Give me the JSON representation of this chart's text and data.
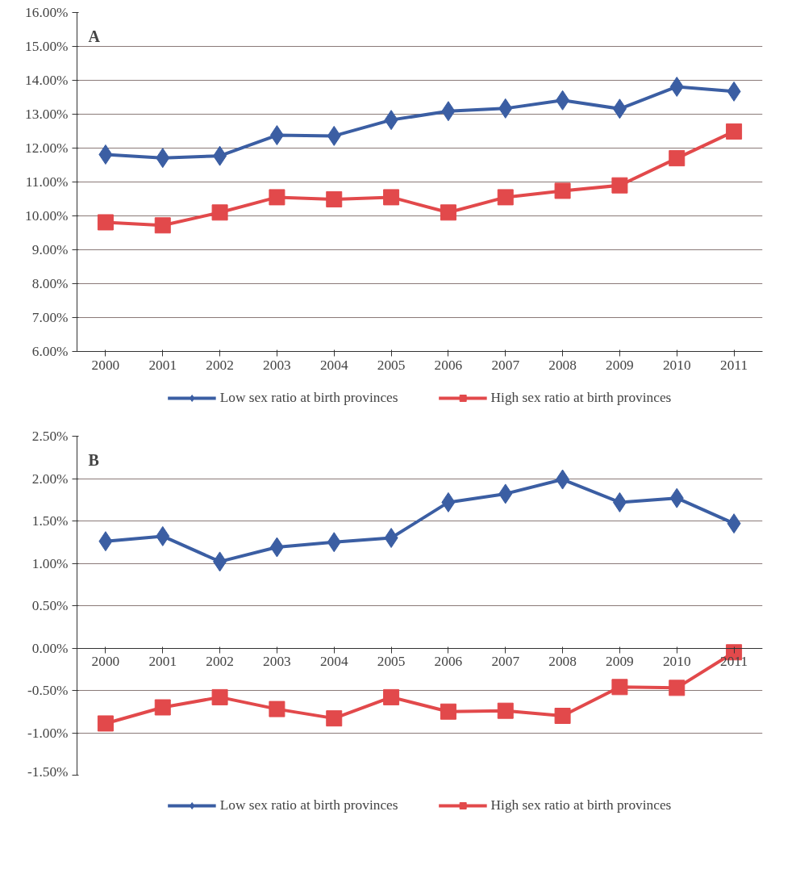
{
  "chart_data": [
    {
      "type": "line",
      "title": "A",
      "categories": [
        "2000",
        "2001",
        "2002",
        "2003",
        "2004",
        "2005",
        "2006",
        "2007",
        "2008",
        "2009",
        "2010",
        "2011"
      ],
      "series": [
        {
          "name": "Low sex ratio at birth provinces",
          "color": "#3b5ea3",
          "marker": "diamond",
          "values": [
            11.81,
            11.71,
            11.77,
            12.38,
            12.36,
            12.83,
            13.09,
            13.17,
            13.41,
            13.16,
            13.81,
            13.67
          ]
        },
        {
          "name": "High sex ratio at birth provinces",
          "color": "#e2494b",
          "marker": "square",
          "values": [
            9.81,
            9.72,
            10.1,
            10.55,
            10.49,
            10.55,
            10.1,
            10.55,
            10.74,
            10.9,
            11.7,
            12.49
          ]
        }
      ],
      "ylim": [
        6,
        16
      ],
      "yticks": [
        {
          "value": 6,
          "label": "6.00%"
        },
        {
          "value": 7,
          "label": "7.00%"
        },
        {
          "value": 8,
          "label": "8.00%"
        },
        {
          "value": 9,
          "label": "9.00%"
        },
        {
          "value": 10,
          "label": "10.00%"
        },
        {
          "value": 11,
          "label": "11.00%"
        },
        {
          "value": 12,
          "label": "12.00%"
        },
        {
          "value": 13,
          "label": "13.00%"
        },
        {
          "value": 14,
          "label": "14.00%"
        },
        {
          "value": 15,
          "label": "15.00%"
        },
        {
          "value": 16,
          "label": "16.00%"
        }
      ],
      "grid": "y",
      "legend": "bottom",
      "line_style": "solid"
    },
    {
      "type": "line",
      "title": "B",
      "categories": [
        "2000",
        "2001",
        "2002",
        "2003",
        "2004",
        "2005",
        "2006",
        "2007",
        "2008",
        "2009",
        "2010",
        "2011"
      ],
      "series": [
        {
          "name": "Low sex ratio at birth provinces",
          "color": "#3b5ea3",
          "marker": "diamond",
          "values": [
            1.26,
            1.32,
            1.02,
            1.19,
            1.25,
            1.3,
            1.72,
            1.82,
            1.99,
            1.72,
            1.77,
            1.47
          ]
        },
        {
          "name": "High sex ratio at birth provinces",
          "color": "#e2494b",
          "marker": "square",
          "values": [
            -0.89,
            -0.7,
            -0.58,
            -0.72,
            -0.83,
            -0.58,
            -0.75,
            -0.74,
            -0.8,
            -0.46,
            -0.47,
            -0.05
          ]
        }
      ],
      "ylim": [
        -1.5,
        2.5
      ],
      "yticks": [
        {
          "value": -1.5,
          "label": "-1.50%"
        },
        {
          "value": -1,
          "label": "-1.00%"
        },
        {
          "value": -0.5,
          "label": "-0.50%"
        },
        {
          "value": 0,
          "label": "0.00%"
        },
        {
          "value": 0.5,
          "label": "0.50%"
        },
        {
          "value": 1,
          "label": "1.00%"
        },
        {
          "value": 1.5,
          "label": "1.50%"
        },
        {
          "value": 2,
          "label": "2.00%"
        },
        {
          "value": 2.5,
          "label": "2.50%"
        }
      ],
      "grid": "y",
      "legend": "bottom",
      "line_style": "solid"
    }
  ]
}
